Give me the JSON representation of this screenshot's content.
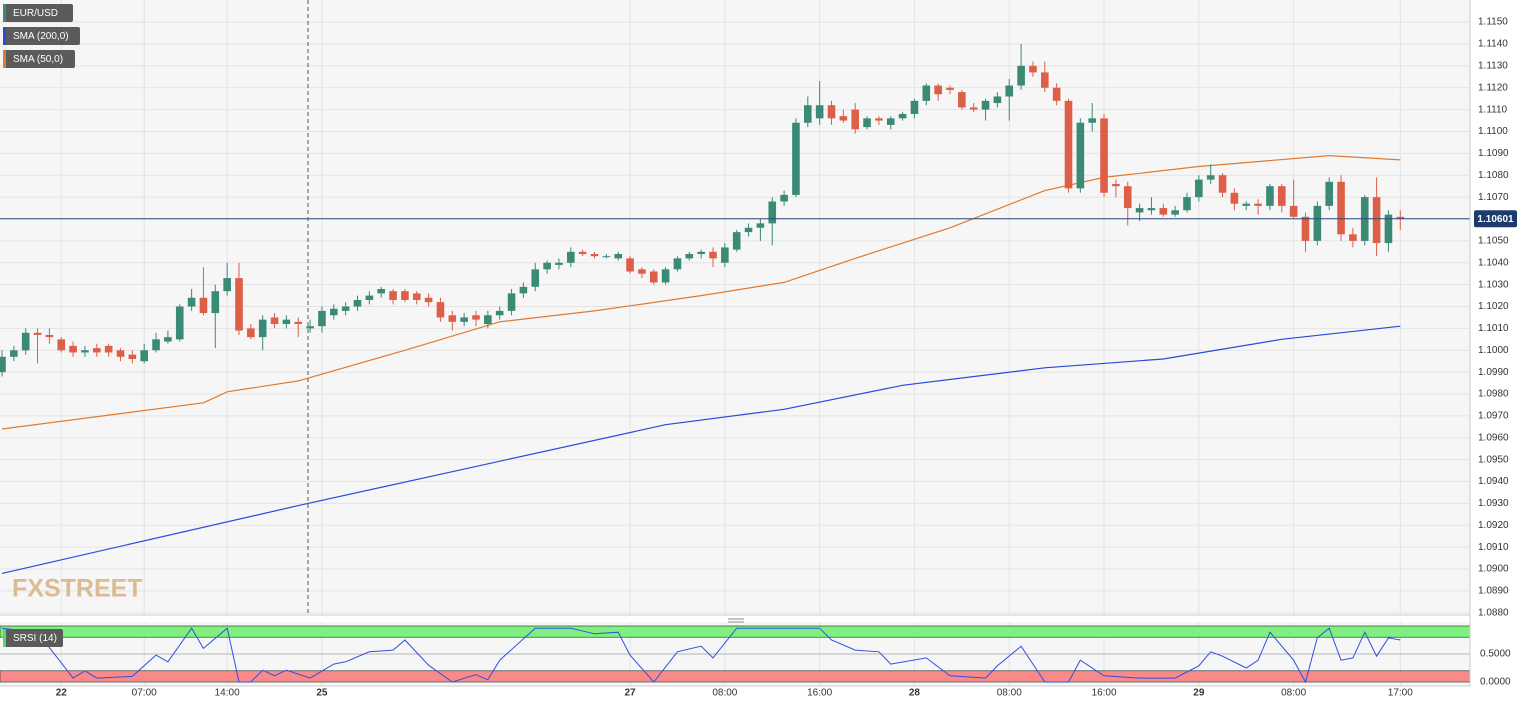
{
  "chart_data": {
    "type": "candlestick",
    "title": "EUR/USD",
    "watermark": "FXSTREET",
    "up_color": "#3b8a76",
    "down_color": "#dd5f48",
    "grid": true,
    "categories": [
      null,
      null,
      null,
      null,
      null,
      "22",
      null,
      null,
      null,
      null,
      null,
      null,
      "07:00",
      null,
      null,
      null,
      null,
      null,
      null,
      "14:00",
      null,
      null,
      null,
      null,
      null,
      null,
      null,
      "25",
      null,
      null,
      null,
      null,
      null,
      null,
      null,
      null,
      null,
      null,
      null,
      null,
      null,
      null,
      null,
      null,
      null,
      null,
      null,
      null,
      null,
      null,
      null,
      null,
      null,
      "27",
      null,
      null,
      null,
      null,
      null,
      null,
      null,
      "08:00",
      null,
      null,
      null,
      null,
      null,
      null,
      null,
      "16:00",
      null,
      null,
      null,
      null,
      null,
      null,
      null,
      "28",
      null,
      null,
      null,
      null,
      null,
      null,
      null,
      "08:00",
      null,
      null,
      null,
      null,
      null,
      null,
      null,
      "16:00",
      null,
      null,
      null,
      null,
      null,
      null,
      null,
      "29",
      null,
      null,
      null,
      null,
      null,
      null,
      null,
      "08:00",
      null,
      null,
      null,
      null,
      null,
      null,
      null,
      null,
      "17:00"
    ],
    "open": [
      1.099,
      1.0997,
      1.1,
      1.1008,
      1.1007,
      1.1005,
      1.1002,
      1.0999,
      1.1001,
      1.1002,
      1.1,
      1.0998,
      1.0995,
      1.1,
      1.1004,
      1.1005,
      1.102,
      1.1024,
      1.1017,
      1.1027,
      1.1033,
      1.101,
      1.1006,
      1.1015,
      1.1012,
      1.1013,
      1.101,
      1.1011,
      1.1016,
      1.1018,
      1.102,
      1.1023,
      1.1026,
      1.1027,
      1.1027,
      1.1026,
      1.1024,
      1.1022,
      1.1016,
      1.1013,
      1.1016,
      1.1012,
      1.1016,
      1.1018,
      1.1026,
      1.1029,
      1.1037,
      1.1039,
      1.104,
      1.1045,
      1.1044,
      1.1043,
      1.1042,
      1.1042,
      1.1037,
      1.1036,
      1.1031,
      1.1037,
      1.1042,
      1.1044,
      1.1045,
      1.104,
      1.1046,
      1.1054,
      1.1056,
      1.1058,
      1.1068,
      1.1071,
      1.1104,
      1.1106,
      1.1112,
      1.1107,
      1.111,
      1.1102,
      1.1106,
      1.1103,
      1.1106,
      1.1108,
      1.1114,
      1.1121,
      1.112,
      1.1118,
      1.1111,
      1.111,
      1.1113,
      1.1116,
      1.1121,
      1.113,
      1.1127,
      1.112,
      1.1114,
      1.1074,
      1.1104,
      1.1106,
      1.1076,
      1.1075,
      1.1063,
      1.1064,
      1.1065,
      1.1062,
      1.1064,
      1.107,
      1.1078,
      1.108,
      1.1072,
      1.1066,
      1.1067,
      1.1066,
      1.1075,
      1.1066,
      1.1061,
      1.105,
      1.1066,
      1.1077,
      1.1053,
      1.105,
      1.107,
      1.1049,
      1.1061
    ],
    "high": [
      1.1,
      1.1002,
      1.101,
      1.101,
      1.101,
      1.1006,
      1.1004,
      1.1002,
      1.1003,
      1.1003,
      1.1001,
      1.1,
      1.1003,
      1.1008,
      1.1009,
      1.1021,
      1.1028,
      1.1038,
      1.103,
      1.104,
      1.104,
      1.1012,
      1.1016,
      1.1017,
      1.1016,
      1.1015,
      1.1014,
      1.102,
      1.1021,
      1.1022,
      1.1025,
      1.1027,
      1.1029,
      1.1028,
      1.1028,
      1.1027,
      1.1026,
      1.1024,
      1.1018,
      1.1017,
      1.1018,
      1.1018,
      1.102,
      1.1028,
      1.1031,
      1.104,
      1.1041,
      1.1042,
      1.1047,
      1.1046,
      1.1045,
      1.1044,
      1.1045,
      1.1043,
      1.1038,
      1.1037,
      1.1038,
      1.1043,
      1.1045,
      1.1046,
      1.1047,
      1.1049,
      1.1055,
      1.1058,
      1.106,
      1.107,
      1.1073,
      1.1106,
      1.1116,
      1.1123,
      1.1114,
      1.111,
      1.1113,
      1.1107,
      1.1107,
      1.1107,
      1.1109,
      1.1115,
      1.1122,
      1.1122,
      1.1121,
      1.1119,
      1.1113,
      1.1115,
      1.1118,
      1.1124,
      1.114,
      1.1132,
      1.1132,
      1.1122,
      1.1115,
      1.1106,
      1.1113,
      1.1108,
      1.1078,
      1.1077,
      1.1067,
      1.107,
      1.1067,
      1.1066,
      1.1072,
      1.108,
      1.1085,
      1.1081,
      1.1074,
      1.1068,
      1.1069,
      1.1076,
      1.1076,
      1.1078,
      1.1063,
      1.1068,
      1.1079,
      1.108,
      1.1056,
      1.1071,
      1.1079,
      1.1064,
      1.1064
    ],
    "low": [
      1.0988,
      1.0995,
      1.0998,
      1.0994,
      1.1003,
      1.0999,
      1.0997,
      1.0997,
      1.0997,
      1.0997,
      1.0995,
      1.0994,
      1.0994,
      1.0999,
      1.1003,
      1.1004,
      1.1018,
      1.1016,
      1.1001,
      1.1025,
      1.1007,
      1.1005,
      1.1,
      1.101,
      1.101,
      1.1006,
      1.1008,
      1.1008,
      1.1014,
      1.1016,
      1.1018,
      1.1021,
      1.1024,
      1.1021,
      1.1022,
      1.1021,
      1.102,
      1.1013,
      1.1009,
      1.1011,
      1.1011,
      1.101,
      1.1014,
      1.1016,
      1.1024,
      1.1027,
      1.1035,
      1.1037,
      1.1038,
      1.1043,
      1.1042,
      1.1042,
      1.1041,
      1.1035,
      1.1033,
      1.103,
      1.103,
      1.1036,
      1.1041,
      1.1042,
      1.1038,
      1.1038,
      1.1045,
      1.1052,
      1.105,
      1.1048,
      1.1066,
      1.107,
      1.1102,
      1.1103,
      1.1103,
      1.1104,
      1.1099,
      1.1101,
      1.1103,
      1.1101,
      1.1105,
      1.1106,
      1.1112,
      1.1114,
      1.1117,
      1.111,
      1.1109,
      1.1105,
      1.1111,
      1.1105,
      1.1119,
      1.1125,
      1.1118,
      1.1112,
      1.1072,
      1.1072,
      1.11,
      1.107,
      1.107,
      1.1057,
      1.1059,
      1.1062,
      1.1061,
      1.1061,
      1.1063,
      1.1068,
      1.1076,
      1.107,
      1.1064,
      1.1064,
      1.1062,
      1.1064,
      1.1063,
      1.106,
      1.1045,
      1.1048,
      1.1064,
      1.105,
      1.1047,
      1.1048,
      1.1043,
      1.1045,
      1.1055
    ],
    "close": [
      1.0997,
      1.1,
      1.1008,
      1.1007,
      1.1006,
      1.1,
      1.0999,
      1.1,
      1.0999,
      1.0999,
      1.0997,
      1.0996,
      1.1,
      1.1005,
      1.1006,
      1.102,
      1.1024,
      1.1017,
      1.1027,
      1.1033,
      1.1009,
      1.1006,
      1.1014,
      1.1012,
      1.1014,
      1.1012,
      1.1011,
      1.1018,
      1.1019,
      1.102,
      1.1023,
      1.1025,
      1.1028,
      1.1023,
      1.1023,
      1.1023,
      1.1022,
      1.1015,
      1.1013,
      1.1015,
      1.1014,
      1.1016,
      1.1018,
      1.1026,
      1.1029,
      1.1037,
      1.104,
      1.104,
      1.1045,
      1.1044,
      1.1043,
      1.1043,
      1.1044,
      1.1036,
      1.1035,
      1.1031,
      1.1037,
      1.1042,
      1.1044,
      1.1045,
      1.1042,
      1.1047,
      1.1054,
      1.1056,
      1.1058,
      1.1068,
      1.1071,
      1.1104,
      1.1112,
      1.1112,
      1.1106,
      1.1105,
      1.1101,
      1.1106,
      1.1105,
      1.1106,
      1.1108,
      1.1114,
      1.1121,
      1.1117,
      1.1119,
      1.1111,
      1.111,
      1.1114,
      1.1116,
      1.1121,
      1.113,
      1.1127,
      1.112,
      1.1114,
      1.1074,
      1.1104,
      1.1106,
      1.1072,
      1.1075,
      1.1065,
      1.1065,
      1.1065,
      1.1062,
      1.1064,
      1.107,
      1.1078,
      1.108,
      1.1072,
      1.1067,
      1.1067,
      1.1066,
      1.1075,
      1.1066,
      1.1061,
      1.105,
      1.1066,
      1.1077,
      1.1053,
      1.105,
      1.107,
      1.1049,
      1.1062,
      1.106
    ],
    "overlays": [
      {
        "name": "SMA (200,0)",
        "color": "#2a4ad8",
        "x": [
          0,
          25,
          56,
          66,
          76,
          88,
          98,
          108,
          118
        ],
        "values": [
          1.0898,
          1.0929,
          1.0966,
          1.0973,
          1.0984,
          1.0992,
          1.0996,
          1.1005,
          1.1011
        ]
      },
      {
        "name": "SMA (50,0)",
        "color": "#e07a30",
        "x": [
          0,
          17,
          19,
          25,
          34,
          42,
          50,
          59,
          66,
          72,
          80,
          88,
          93,
          101,
          112,
          118
        ],
        "values": [
          1.0964,
          1.0976,
          1.0981,
          1.0986,
          1.1,
          1.1013,
          1.1018,
          1.1025,
          1.1031,
          1.1042,
          1.1056,
          1.1073,
          1.1079,
          1.1084,
          1.1089,
          1.1087
        ]
      }
    ],
    "last_price": 1.10601,
    "ylim": [
      1.0879,
      1.11601
    ],
    "yticks": [
      {
        "value": 1.088,
        "label": "1.0880"
      },
      {
        "value": 1.089,
        "label": "1.0890"
      },
      {
        "value": 1.09,
        "label": "1.0900"
      },
      {
        "value": 1.091,
        "label": "1.0910"
      },
      {
        "value": 1.092,
        "label": "1.0920"
      },
      {
        "value": 1.093,
        "label": "1.0930"
      },
      {
        "value": 1.094,
        "label": "1.0940"
      },
      {
        "value": 1.095,
        "label": "1.0950"
      },
      {
        "value": 1.096,
        "label": "1.0960"
      },
      {
        "value": 1.097,
        "label": "1.0970"
      },
      {
        "value": 1.098,
        "label": "1.0980"
      },
      {
        "value": 1.099,
        "label": "1.0990"
      },
      {
        "value": 1.1,
        "label": "1.1000"
      },
      {
        "value": 1.101,
        "label": "1.1010"
      },
      {
        "value": 1.102,
        "label": "1.1020"
      },
      {
        "value": 1.103,
        "label": "1.1030"
      },
      {
        "value": 1.104,
        "label": "1.1040"
      },
      {
        "value": 1.105,
        "label": "1.1050"
      },
      {
        "value": 1.106,
        "label": "1.1060"
      },
      {
        "value": 1.107,
        "label": "1.1070"
      },
      {
        "value": 1.108,
        "label": "1.1080"
      },
      {
        "value": 1.109,
        "label": "1.1090"
      },
      {
        "value": 1.11,
        "label": "1.1100"
      },
      {
        "value": 1.111,
        "label": "1.1110"
      },
      {
        "value": 1.112,
        "label": "1.1120"
      },
      {
        "value": 1.113,
        "label": "1.1130"
      },
      {
        "value": 1.114,
        "label": "1.1140"
      },
      {
        "value": 1.115,
        "label": "1.1150"
      }
    ],
    "indicator": {
      "name": "SRSI (14)",
      "color": "#3050e0",
      "legend_color": "#56d96a",
      "upper_band": [
        0.8,
        1
      ],
      "upper_color": "#7ff07f",
      "lower_band": [
        0,
        0.2
      ],
      "lower_color": "#f98a8a",
      "ylim": [
        0,
        1
      ],
      "yticks": [
        {
          "value": 0.5,
          "label": "0.5000"
        },
        {
          "value": 0,
          "label": "0.0000"
        }
      ],
      "x": [
        0,
        3,
        6,
        7,
        8,
        11,
        13,
        14,
        16,
        17,
        19,
        20,
        21,
        22,
        23,
        24,
        26,
        28,
        29,
        31,
        33,
        34,
        36,
        38,
        40,
        41,
        42,
        45,
        48,
        50,
        52,
        53,
        55,
        57,
        59,
        60,
        62,
        69,
        70,
        72,
        74,
        75,
        78,
        80,
        83,
        84,
        86,
        88,
        90,
        91,
        93,
        96,
        99,
        101,
        102,
        103,
        105,
        106,
        107,
        109,
        110,
        111,
        112,
        113,
        114,
        115,
        116,
        117,
        118
      ],
      "values": [
        0.96,
        0.89,
        0.07,
        0.2,
        0.07,
        0.1,
        0.48,
        0.36,
        0.96,
        0.6,
        0.96,
        0,
        0,
        0.21,
        0.11,
        0.21,
        0.07,
        0.32,
        0.36,
        0.54,
        0.57,
        0.75,
        0.3,
        0,
        0.13,
        0.04,
        0.39,
        0.96,
        0.96,
        0.86,
        0.89,
        0.48,
        0,
        0.54,
        0.64,
        0.43,
        0.96,
        0.96,
        0.75,
        0.57,
        0.54,
        0.32,
        0.43,
        0.11,
        0.07,
        0.29,
        0.64,
        0,
        0,
        0.39,
        0.11,
        0.07,
        0.07,
        0.29,
        0.54,
        0.46,
        0.25,
        0.39,
        0.89,
        0.39,
        0,
        0.79,
        0.96,
        0.39,
        0.43,
        0.89,
        0.46,
        0.79,
        0.75
      ]
    }
  }
}
